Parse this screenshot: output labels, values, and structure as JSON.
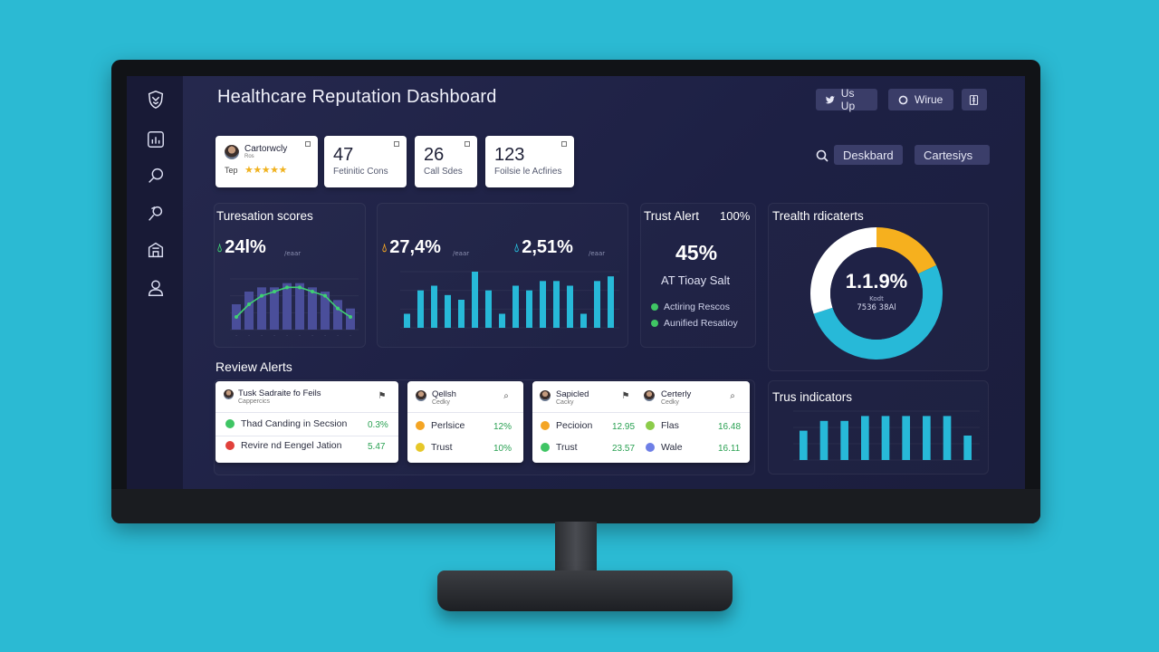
{
  "app": {
    "title": "Healthcare Reputation Dashboard"
  },
  "colors": {
    "accent_cyan": "#27b9d8",
    "bar_purple": "#4a4e9a",
    "trend_green": "#3fd173",
    "donut_orange": "#f6b01e",
    "donut_white": "#ffffff",
    "green": "#3fc564",
    "red": "#e1413b",
    "orange": "#f4a524",
    "yellow": "#e6c728",
    "lime": "#8ccc4a",
    "blue": "#6e7fe6"
  },
  "sidebar": {
    "items": [
      {
        "icon": "shield-logo-icon"
      },
      {
        "icon": "bar-chart-icon"
      },
      {
        "icon": "search-icon"
      },
      {
        "icon": "people-icon"
      },
      {
        "icon": "building-icon"
      },
      {
        "icon": "user-icon"
      }
    ]
  },
  "header": {
    "buttons": [
      {
        "label": "Us Up",
        "icon": "bird-icon"
      },
      {
        "label": "Wirue",
        "icon": "circle-icon"
      },
      {
        "label": "",
        "icon": "document-icon"
      }
    ]
  },
  "stats": {
    "profile": {
      "name": "Cartorwcly",
      "sub": "Ros",
      "rating_label": "Tep",
      "stars": "★★★★★"
    },
    "cards": [
      {
        "value": "47",
        "label": "Fetinitic Cons"
      },
      {
        "value": "26",
        "label": "Call Sdes"
      },
      {
        "value": "123",
        "label": "Foilsie le Acfiries"
      }
    ]
  },
  "actions": {
    "dashboard_label": "Deskbard",
    "categories_label": "Cartesiys"
  },
  "reputation": {
    "title": "Turesation scores",
    "value1": "24l%",
    "value2": "27,4%",
    "value3": "2,51%",
    "dim_label": "/eaar"
  },
  "trust_alert": {
    "title": "Trust Alert",
    "percent": "100%",
    "big_value": "45%",
    "subtitle": "AT Tioay Salt",
    "legend": [
      {
        "label": "Actiring Rescos",
        "color": "#3fc564"
      },
      {
        "label": "Aunified Resatioy",
        "color": "#3fc564"
      }
    ]
  },
  "health": {
    "title": "Trealth rdicaterts",
    "center_value": "1.1.9%",
    "center_sub1": "Kodt",
    "center_sub2": "7536 38Al"
  },
  "review_alerts": {
    "title": "Review Alerts",
    "card1": {
      "header": "Tusk Sadraite fo Feils",
      "header_sub": "Cappercics",
      "rows": [
        {
          "label": "Thad Canding in Secsion",
          "value": "0.3%",
          "color": "#3fc564"
        },
        {
          "label": "Revire nd Eengel Jation",
          "value": "5.47",
          "color": "#e1413b"
        }
      ]
    },
    "card2": {
      "header": "Qellsh",
      "header_sub": "Cedky",
      "rows": [
        {
          "label": "Perlsice",
          "value": "12%",
          "color": "#f4a524"
        },
        {
          "label": "Trust",
          "value": "10%",
          "color": "#e6c728"
        }
      ]
    },
    "card3": {
      "header_a": "Sapicled",
      "header_a_sub": "Cacky",
      "header_b": "Certerly",
      "header_b_sub": "Cedky",
      "rows_a": [
        {
          "label": "Pecioion",
          "value": "12.95",
          "color": "#f4a524"
        },
        {
          "label": "Trust",
          "value": "23.57",
          "color": "#3fc564"
        }
      ],
      "rows_b": [
        {
          "label": "Flas",
          "value": "16.48",
          "color": "#8ccc4a"
        },
        {
          "label": "Wale",
          "value": "16.11",
          "color": "#6e7fe6"
        }
      ]
    }
  },
  "trust_indicators": {
    "title": "Trus indicators"
  },
  "chart_data": [
    {
      "type": "bar",
      "title": "Turesation scores",
      "values": [
        6,
        9,
        10,
        10,
        11,
        11,
        10,
        9,
        7,
        5
      ],
      "trend": [
        3,
        6,
        8,
        9,
        10,
        10,
        9,
        8,
        5,
        3
      ],
      "ylim": [
        0,
        12
      ]
    },
    {
      "type": "bar",
      "values": [
        3,
        8,
        9,
        7,
        6,
        12,
        8,
        3,
        9,
        8,
        10,
        10,
        9,
        3,
        10,
        11
      ],
      "ylim": [
        0,
        12
      ]
    },
    {
      "type": "pie",
      "title": "Trealth rdicaterts",
      "values": [
        18,
        52,
        30
      ],
      "colors": [
        "#f6b01e",
        "#27b9d8",
        "#ffffff"
      ]
    },
    {
      "type": "bar",
      "title": "Trus indicators",
      "values": [
        6,
        8,
        8,
        9,
        9,
        9,
        9,
        9,
        5
      ],
      "ylim": [
        0,
        10
      ]
    }
  ]
}
